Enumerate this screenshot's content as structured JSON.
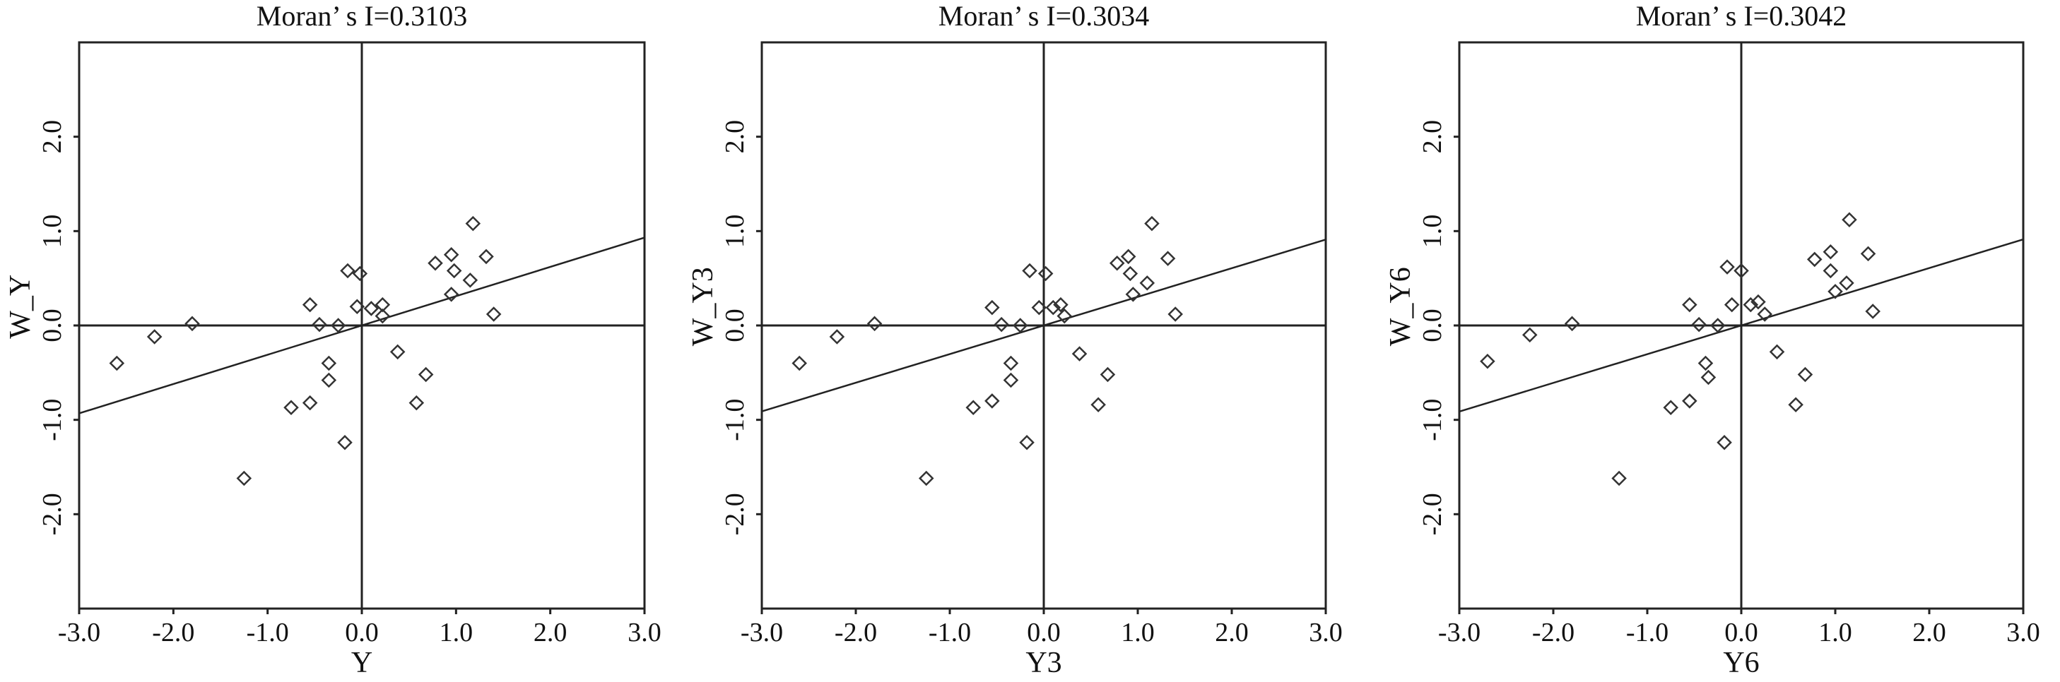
{
  "chart_data": [
    {
      "type": "scatter",
      "title": "Moran’ s I=0.3103",
      "xlabel": "Y",
      "ylabel": "W_Y",
      "xlim": [
        -3.0,
        3.0
      ],
      "ylim": [
        -3.0,
        3.0
      ],
      "x_ticks": [
        "-3.0",
        "-2.0",
        "-1.0",
        "0.0",
        "1.0",
        "2.0",
        "3.0"
      ],
      "y_ticks": [
        "-2.0",
        "-1.0",
        "0.0",
        "1.0",
        "2.0"
      ],
      "slope": 0.3103,
      "intercept": 0.0,
      "reference_lines": {
        "x": 0.0,
        "y": 0.0
      },
      "grid": false,
      "points": [
        {
          "x": -2.6,
          "y": -0.4
        },
        {
          "x": -2.2,
          "y": -0.12
        },
        {
          "x": -1.8,
          "y": 0.02
        },
        {
          "x": -1.25,
          "y": -1.62
        },
        {
          "x": -0.75,
          "y": -0.87
        },
        {
          "x": -0.55,
          "y": -0.82
        },
        {
          "x": -0.55,
          "y": 0.22
        },
        {
          "x": -0.45,
          "y": 0.01
        },
        {
          "x": -0.35,
          "y": -0.4
        },
        {
          "x": -0.35,
          "y": -0.58
        },
        {
          "x": -0.25,
          "y": 0.0
        },
        {
          "x": -0.18,
          "y": -1.24
        },
        {
          "x": -0.15,
          "y": 0.58
        },
        {
          "x": -0.05,
          "y": 0.2
        },
        {
          "x": -0.02,
          "y": 0.55
        },
        {
          "x": 0.1,
          "y": 0.18
        },
        {
          "x": 0.22,
          "y": 0.22
        },
        {
          "x": 0.22,
          "y": 0.1
        },
        {
          "x": 0.38,
          "y": -0.28
        },
        {
          "x": 0.58,
          "y": -0.82
        },
        {
          "x": 0.68,
          "y": -0.52
        },
        {
          "x": 0.78,
          "y": 0.66
        },
        {
          "x": 0.95,
          "y": 0.75
        },
        {
          "x": 0.98,
          "y": 0.58
        },
        {
          "x": 0.95,
          "y": 0.33
        },
        {
          "x": 1.15,
          "y": 0.48
        },
        {
          "x": 1.18,
          "y": 1.08
        },
        {
          "x": 1.32,
          "y": 0.73
        },
        {
          "x": 1.4,
          "y": 0.12
        }
      ]
    },
    {
      "type": "scatter",
      "title": "Moran’ s I=0.3034",
      "xlabel": "Y3",
      "ylabel": "W_Y3",
      "xlim": [
        -3.0,
        3.0
      ],
      "ylim": [
        -3.0,
        3.0
      ],
      "x_ticks": [
        "-3.0",
        "-2.0",
        "-1.0",
        "0.0",
        "1.0",
        "2.0",
        "3.0"
      ],
      "y_ticks": [
        "-2.0",
        "-1.0",
        "0.0",
        "1.0",
        "2.0"
      ],
      "slope": 0.3034,
      "intercept": 0.0,
      "reference_lines": {
        "x": 0.0,
        "y": 0.0
      },
      "grid": false,
      "points": [
        {
          "x": -2.6,
          "y": -0.4
        },
        {
          "x": -2.2,
          "y": -0.12
        },
        {
          "x": -1.8,
          "y": 0.02
        },
        {
          "x": -1.25,
          "y": -1.62
        },
        {
          "x": -0.75,
          "y": -0.87
        },
        {
          "x": -0.55,
          "y": -0.8
        },
        {
          "x": -0.55,
          "y": 0.19
        },
        {
          "x": -0.45,
          "y": 0.01
        },
        {
          "x": -0.35,
          "y": -0.4
        },
        {
          "x": -0.35,
          "y": -0.58
        },
        {
          "x": -0.25,
          "y": 0.0
        },
        {
          "x": -0.18,
          "y": -1.24
        },
        {
          "x": -0.15,
          "y": 0.58
        },
        {
          "x": -0.05,
          "y": 0.19
        },
        {
          "x": 0.02,
          "y": 0.55
        },
        {
          "x": 0.1,
          "y": 0.19
        },
        {
          "x": 0.18,
          "y": 0.22
        },
        {
          "x": 0.22,
          "y": 0.1
        },
        {
          "x": 0.38,
          "y": -0.3
        },
        {
          "x": 0.58,
          "y": -0.84
        },
        {
          "x": 0.68,
          "y": -0.52
        },
        {
          "x": 0.78,
          "y": 0.66
        },
        {
          "x": 0.9,
          "y": 0.73
        },
        {
          "x": 0.92,
          "y": 0.55
        },
        {
          "x": 0.95,
          "y": 0.33
        },
        {
          "x": 1.1,
          "y": 0.45
        },
        {
          "x": 1.15,
          "y": 1.08
        },
        {
          "x": 1.32,
          "y": 0.71
        },
        {
          "x": 1.4,
          "y": 0.12
        }
      ]
    },
    {
      "type": "scatter",
      "title": "Moran’ s I=0.3042",
      "xlabel": "Y6",
      "ylabel": "W_Y6",
      "xlim": [
        -3.0,
        3.0
      ],
      "ylim": [
        -3.0,
        3.0
      ],
      "x_ticks": [
        "-3.0",
        "-2.0",
        "-1.0",
        "0.0",
        "1.0",
        "2.0",
        "3.0"
      ],
      "y_ticks": [
        "-2.0",
        "-1.0",
        "0.0",
        "1.0",
        "2.0"
      ],
      "slope": 0.3042,
      "intercept": 0.0,
      "reference_lines": {
        "x": 0.0,
        "y": 0.0
      },
      "grid": false,
      "points": [
        {
          "x": -2.7,
          "y": -0.38
        },
        {
          "x": -2.25,
          "y": -0.1
        },
        {
          "x": -1.8,
          "y": 0.02
        },
        {
          "x": -1.3,
          "y": -1.62
        },
        {
          "x": -0.75,
          "y": -0.87
        },
        {
          "x": -0.55,
          "y": -0.8
        },
        {
          "x": -0.55,
          "y": 0.22
        },
        {
          "x": -0.45,
          "y": 0.01
        },
        {
          "x": -0.38,
          "y": -0.4
        },
        {
          "x": -0.35,
          "y": -0.55
        },
        {
          "x": -0.25,
          "y": 0.0
        },
        {
          "x": -0.18,
          "y": -1.24
        },
        {
          "x": -0.15,
          "y": 0.62
        },
        {
          "x": -0.1,
          "y": 0.22
        },
        {
          "x": 0.0,
          "y": 0.58
        },
        {
          "x": 0.1,
          "y": 0.22
        },
        {
          "x": 0.18,
          "y": 0.25
        },
        {
          "x": 0.25,
          "y": 0.12
        },
        {
          "x": 0.38,
          "y": -0.28
        },
        {
          "x": 0.58,
          "y": -0.84
        },
        {
          "x": 0.68,
          "y": -0.52
        },
        {
          "x": 0.78,
          "y": 0.7
        },
        {
          "x": 0.95,
          "y": 0.78
        },
        {
          "x": 0.95,
          "y": 0.58
        },
        {
          "x": 1.0,
          "y": 0.36
        },
        {
          "x": 1.12,
          "y": 0.45
        },
        {
          "x": 1.15,
          "y": 1.12
        },
        {
          "x": 1.35,
          "y": 0.76
        },
        {
          "x": 1.4,
          "y": 0.15
        }
      ]
    }
  ]
}
